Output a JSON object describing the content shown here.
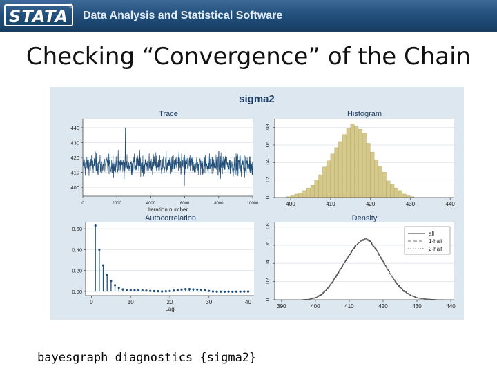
{
  "banner": {
    "logo_text": "STATA",
    "registered_mark": "®",
    "tagline": "Data Analysis and Statistical Software",
    "colors": {
      "dark": "#163d63",
      "light": "#3d6a96"
    }
  },
  "slide": {
    "title": "Checking “Convergence” of the Chain",
    "caption": "bayesgraph diagnostics {sigma2}"
  },
  "chart_data": {
    "title": "sigma2",
    "background": "#dde7f0",
    "plot_background": "#ffffff",
    "panels": [
      {
        "id": "trace",
        "type": "line",
        "title": "Trace",
        "xlabel": "Iteration number",
        "ylabel": "",
        "xlim": [
          0,
          10000
        ],
        "ylim": [
          394,
          446
        ],
        "xticks": [
          0,
          2000,
          4000,
          6000,
          8000,
          10000
        ],
        "xtick_labels": [
          "0",
          "2000",
          "4000",
          "6000",
          "8000",
          "10000"
        ],
        "yticks": [
          400,
          410,
          420,
          430,
          440
        ],
        "ytick_labels": [
          "400",
          "410",
          "420",
          "430",
          "440"
        ],
        "series": [
          {
            "color": "#1f4e79",
            "n_points": 10000,
            "center": 415,
            "typical_range": [
              405,
              426
            ],
            "extremes": [
              401,
              440
            ]
          }
        ]
      },
      {
        "id": "histogram",
        "type": "bar",
        "title": "Histogram",
        "xlim": [
          396,
          441
        ],
        "ylim": [
          0,
          0.09
        ],
        "xticks": [
          400,
          410,
          420,
          430,
          440
        ],
        "xtick_labels": [
          "400",
          "410",
          "420",
          "430",
          "440"
        ],
        "yticks": [
          0,
          0.02,
          0.04,
          0.06,
          0.08
        ],
        "ytick_labels": [
          "0",
          ".02",
          ".04",
          ".06",
          ".08"
        ],
        "bar_color": "#d4c88a",
        "bar_edge": "#b8aa66",
        "bins": [
          {
            "x": 399,
            "value": 0.001
          },
          {
            "x": 400,
            "value": 0.002
          },
          {
            "x": 401,
            "value": 0.004
          },
          {
            "x": 402,
            "value": 0.005
          },
          {
            "x": 403,
            "value": 0.008
          },
          {
            "x": 404,
            "value": 0.011
          },
          {
            "x": 405,
            "value": 0.014
          },
          {
            "x": 406,
            "value": 0.02
          },
          {
            "x": 407,
            "value": 0.026
          },
          {
            "x": 408,
            "value": 0.035
          },
          {
            "x": 409,
            "value": 0.042
          },
          {
            "x": 410,
            "value": 0.05
          },
          {
            "x": 411,
            "value": 0.057
          },
          {
            "x": 412,
            "value": 0.064
          },
          {
            "x": 413,
            "value": 0.072
          },
          {
            "x": 414,
            "value": 0.079
          },
          {
            "x": 415,
            "value": 0.084
          },
          {
            "x": 416,
            "value": 0.081
          },
          {
            "x": 417,
            "value": 0.078
          },
          {
            "x": 418,
            "value": 0.074
          },
          {
            "x": 419,
            "value": 0.062
          },
          {
            "x": 420,
            "value": 0.052
          },
          {
            "x": 421,
            "value": 0.043
          },
          {
            "x": 422,
            "value": 0.036
          },
          {
            "x": 423,
            "value": 0.029
          },
          {
            "x": 424,
            "value": 0.019
          },
          {
            "x": 425,
            "value": 0.015
          },
          {
            "x": 426,
            "value": 0.011
          },
          {
            "x": 427,
            "value": 0.008
          },
          {
            "x": 428,
            "value": 0.004
          },
          {
            "x": 429,
            "value": 0.002
          },
          {
            "x": 430,
            "value": 0.001
          }
        ]
      },
      {
        "id": "autocorrelation",
        "type": "stem",
        "title": "Autocorrelation",
        "xlabel": "Lag",
        "xlim": [
          -1.5,
          41.5
        ],
        "ylim": [
          -0.04,
          0.66
        ],
        "xticks": [
          0,
          10,
          20,
          30,
          40
        ],
        "xtick_labels": [
          "0",
          "10",
          "20",
          "30",
          "40"
        ],
        "yticks": [
          0,
          0.2,
          0.4,
          0.6
        ],
        "ytick_labels": [
          "0.00",
          "0.20",
          "0.40",
          "0.60"
        ],
        "color": "#1f4e79",
        "lags": [
          1,
          2,
          3,
          4,
          5,
          6,
          7,
          8,
          9,
          10,
          11,
          12,
          13,
          14,
          15,
          16,
          17,
          18,
          19,
          20,
          21,
          22,
          23,
          24,
          25,
          26,
          27,
          28,
          29,
          30,
          31,
          32,
          33,
          34,
          35,
          36,
          37,
          38,
          39,
          40
        ],
        "values": [
          0.63,
          0.4,
          0.25,
          0.16,
          0.1,
          0.06,
          0.035,
          0.02,
          0.015,
          0.012,
          0.012,
          0.012,
          0.01,
          0.008,
          0.005,
          0.003,
          0.002,
          0.0,
          0.002,
          0.004,
          0.008,
          0.012,
          0.018,
          0.022,
          0.022,
          0.02,
          0.018,
          0.015,
          0.01,
          0.005,
          0.0,
          -0.002,
          -0.002,
          -0.003,
          -0.002,
          -0.003,
          -0.002,
          -0.002,
          -0.001,
          -0.001
        ]
      },
      {
        "id": "density",
        "type": "line",
        "title": "Density",
        "xlim": [
          388,
          441
        ],
        "ylim": [
          0,
          0.085
        ],
        "xticks": [
          390,
          400,
          410,
          420,
          430,
          440
        ],
        "xtick_labels": [
          "390",
          "400",
          "410",
          "420",
          "430",
          "440"
        ],
        "yticks": [
          0,
          0.02,
          0.04,
          0.06,
          0.08
        ],
        "ytick_labels": [
          "0",
          ".02",
          ".04",
          ".06",
          ".08"
        ],
        "legend_position": "top-right",
        "series": [
          {
            "name": "all",
            "style": "solid",
            "color": "#333333",
            "x": [
              396,
              398,
              400,
              402,
              404,
              406,
              408,
              410,
              412,
              414,
              415,
              416,
              418,
              420,
              422,
              424,
              426,
              428,
              430,
              432,
              434,
              436,
              438
            ],
            "y": [
              0.0,
              0.0005,
              0.002,
              0.006,
              0.014,
              0.025,
              0.037,
              0.049,
              0.06,
              0.066,
              0.067,
              0.065,
              0.055,
              0.042,
              0.029,
              0.018,
              0.01,
              0.005,
              0.002,
              0.001,
              0.0005,
              0.0,
              0.0
            ]
          },
          {
            "name": "1-half",
            "style": "dashed",
            "color": "#777777",
            "x": [
              396,
              398,
              400,
              402,
              404,
              406,
              408,
              410,
              412,
              414,
              415,
              416,
              418,
              420,
              422,
              424,
              426,
              428,
              430,
              432,
              434,
              436,
              438
            ],
            "y": [
              0.0,
              0.0006,
              0.0025,
              0.007,
              0.015,
              0.026,
              0.038,
              0.05,
              0.061,
              0.065,
              0.066,
              0.064,
              0.054,
              0.041,
              0.029,
              0.017,
              0.009,
              0.005,
              0.002,
              0.001,
              0.0004,
              0.0,
              0.0
            ]
          },
          {
            "name": "2-half",
            "style": "dotted",
            "color": "#555555",
            "x": [
              396,
              398,
              400,
              402,
              404,
              406,
              408,
              410,
              412,
              414,
              415,
              416,
              418,
              420,
              422,
              424,
              426,
              428,
              430,
              432,
              434,
              436,
              438
            ],
            "y": [
              0.0,
              0.0004,
              0.0018,
              0.0055,
              0.013,
              0.024,
              0.036,
              0.048,
              0.059,
              0.067,
              0.068,
              0.066,
              0.056,
              0.043,
              0.03,
              0.019,
              0.011,
              0.0055,
              0.0025,
              0.001,
              0.0005,
              0.0,
              0.0
            ]
          }
        ]
      }
    ]
  }
}
